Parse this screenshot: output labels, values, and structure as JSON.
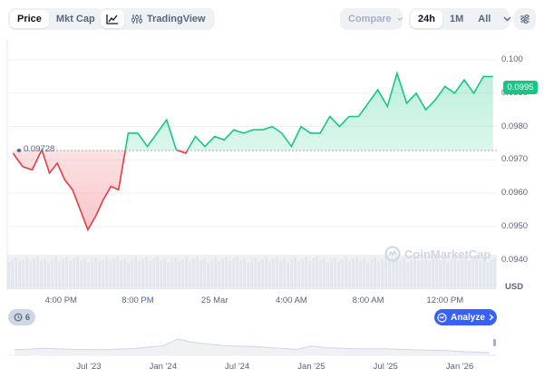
{
  "toolbar": {
    "view_tabs": [
      {
        "label": "Price",
        "active": true
      },
      {
        "label": "Mkt Cap",
        "active": false
      }
    ],
    "chart_type": {
      "line_icon": "line-chart-icon",
      "tradingview_label": "TradingView",
      "tradingview_icon": "sliders-icon"
    },
    "compare_label": "Compare",
    "ranges": [
      {
        "label": "24h",
        "active": true
      },
      {
        "label": "1M",
        "active": false
      },
      {
        "label": "All",
        "active": false
      }
    ],
    "settings_icon": "settings-sliders-icon"
  },
  "chart_data": {
    "type": "line",
    "y_ticks": [
      "0.100",
      "0.0990",
      "0.0980",
      "0.0970",
      "0.0960",
      "0.0950",
      "0.0940"
    ],
    "ylim": [
      0.0935,
      0.1003
    ],
    "x_ticks": [
      "4:00 PM",
      "8:00 PM",
      "25 Mar",
      "4:00 AM",
      "8:00 AM",
      "12:00 PM"
    ],
    "x_tick_hours": [
      16,
      20,
      24,
      28,
      32,
      36
    ],
    "xlim": [
      13.2,
      38.7
    ],
    "open_price": 0.09728,
    "open_price_label": "0.09728",
    "current_price_label": "0.0995",
    "currency_label": "USD",
    "colors": {
      "up": "#16c784",
      "down": "#ea3943"
    },
    "series": [
      {
        "x": [
          13.5,
          14.0,
          14.5,
          15.0,
          15.4,
          15.8,
          16.2,
          16.6,
          17.0,
          17.4,
          17.8,
          18.2,
          18.6,
          19.0,
          19.5,
          20.0,
          20.5,
          21.0,
          21.5,
          22.0,
          22.5,
          23.0,
          23.5,
          24.0,
          24.5,
          25.0,
          25.5,
          26.0,
          26.5,
          27.0,
          27.5,
          28.0,
          28.5,
          29.0,
          29.5,
          30.0,
          30.5,
          31.0,
          31.5,
          32.0,
          32.5,
          33.0,
          33.5,
          34.0,
          34.5,
          35.0,
          35.5,
          36.0,
          36.5,
          37.0,
          37.5,
          38.0,
          38.5
        ],
        "y": [
          0.0972,
          0.0968,
          0.0967,
          0.0973,
          0.0966,
          0.0969,
          0.0964,
          0.0961,
          0.0955,
          0.0949,
          0.0953,
          0.0958,
          0.0962,
          0.0961,
          0.0978,
          0.0978,
          0.0974,
          0.0978,
          0.0982,
          0.0973,
          0.0972,
          0.0977,
          0.0974,
          0.0977,
          0.0976,
          0.0979,
          0.0978,
          0.0979,
          0.0979,
          0.098,
          0.0978,
          0.0974,
          0.098,
          0.0978,
          0.0978,
          0.0983,
          0.098,
          0.0983,
          0.0983,
          0.0987,
          0.0991,
          0.0986,
          0.0996,
          0.0987,
          0.099,
          0.0985,
          0.0988,
          0.0992,
          0.099,
          0.0994,
          0.099,
          0.0995,
          0.0995
        ]
      }
    ],
    "volume": "bars"
  },
  "watermark": {
    "text": "CoinMarketCap",
    "icon": "coinmarketcap-logo-icon"
  },
  "history_badge": {
    "icon": "history-icon",
    "count": "6"
  },
  "analyze": {
    "label": "Analyze",
    "icon": "ai-sparkle-icon"
  },
  "mini_chart": {
    "x_ticks": [
      "Jul '23",
      "Jan '24",
      "Jul '24",
      "Jan '25",
      "Jul '25",
      "Jan '26"
    ],
    "x_tick_years": [
      2023.5,
      2024.0,
      2024.5,
      2025.0,
      2025.5,
      2026.0
    ],
    "xlim": [
      2022.95,
      2026.25
    ],
    "x": [
      2023.0,
      2023.2,
      2023.4,
      2023.6,
      2023.8,
      2024.0,
      2024.1,
      2024.2,
      2024.4,
      2024.6,
      2024.8,
      2024.9,
      2025.0,
      2025.1,
      2025.3,
      2025.5,
      2025.7,
      2025.9,
      2026.0,
      2026.1,
      2026.2
    ],
    "values": [
      0.2,
      0.26,
      0.22,
      0.21,
      0.25,
      0.35,
      0.6,
      0.48,
      0.36,
      0.33,
      0.26,
      0.22,
      0.34,
      0.28,
      0.24,
      0.24,
      0.2,
      0.18,
      0.14,
      0.12,
      0.1
    ],
    "ylim": [
      0,
      1
    ]
  }
}
